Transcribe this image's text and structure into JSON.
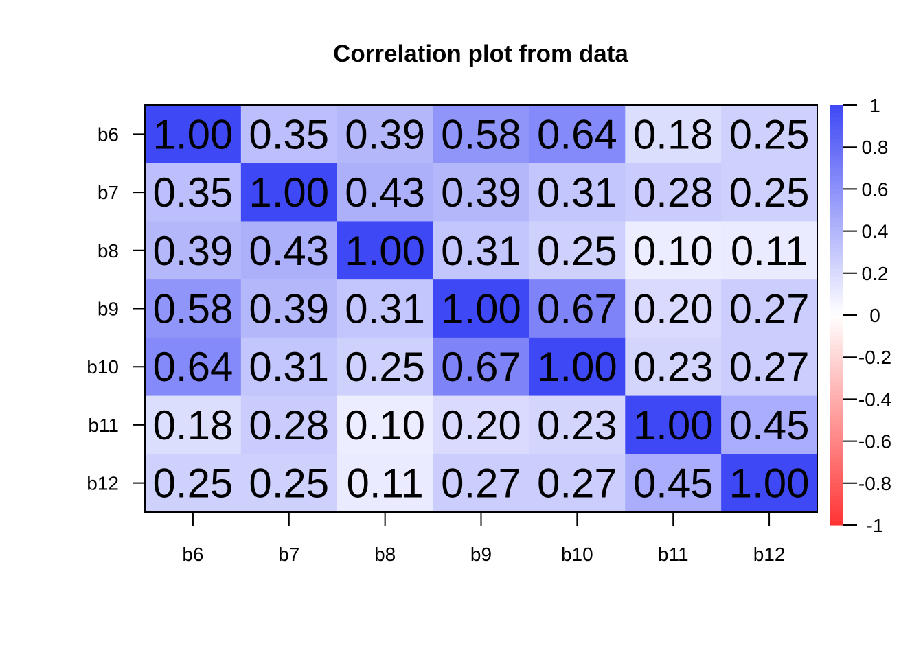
{
  "chart_data": {
    "type": "heatmap",
    "title": "Correlation plot from data",
    "xlabel": "",
    "ylabel": "",
    "row_labels": [
      "b6",
      "b7",
      "b8",
      "b9",
      "b10",
      "b11",
      "b12"
    ],
    "col_labels": [
      "b6",
      "b7",
      "b8",
      "b9",
      "b10",
      "b11",
      "b12"
    ],
    "values": [
      [
        1.0,
        0.35,
        0.39,
        0.58,
        0.64,
        0.18,
        0.25
      ],
      [
        0.35,
        1.0,
        0.43,
        0.39,
        0.31,
        0.28,
        0.25
      ],
      [
        0.39,
        0.43,
        1.0,
        0.31,
        0.25,
        0.1,
        0.11
      ],
      [
        0.58,
        0.39,
        0.31,
        1.0,
        0.67,
        0.2,
        0.27
      ],
      [
        0.64,
        0.31,
        0.25,
        0.67,
        1.0,
        0.23,
        0.27
      ],
      [
        0.18,
        0.28,
        0.1,
        0.2,
        0.23,
        1.0,
        0.45
      ],
      [
        0.25,
        0.25,
        0.11,
        0.27,
        0.27,
        0.45,
        1.0
      ]
    ],
    "value_labels": [
      [
        "1.00",
        "0.35",
        "0.39",
        "0.58",
        "0.64",
        "0.18",
        "0.25"
      ],
      [
        "0.35",
        "1.00",
        "0.43",
        "0.39",
        "0.31",
        "0.28",
        "0.25"
      ],
      [
        "0.39",
        "0.43",
        "1.00",
        "0.31",
        "0.25",
        "0.10",
        "0.11"
      ],
      [
        "0.58",
        "0.39",
        "0.31",
        "1.00",
        "0.67",
        "0.20",
        "0.27"
      ],
      [
        "0.64",
        "0.31",
        "0.25",
        "0.67",
        "1.00",
        "0.23",
        "0.27"
      ],
      [
        "0.18",
        "0.28",
        "0.10",
        "0.20",
        "0.23",
        "1.00",
        "0.45"
      ],
      [
        "0.25",
        "0.25",
        "0.11",
        "0.27",
        "0.27",
        "0.45",
        "1.00"
      ]
    ],
    "color_scale": {
      "range": [
        -1,
        1
      ],
      "low_color": "#ff3333",
      "mid_color": "#ffffff",
      "high_color": "#3f48f5"
    },
    "legend": {
      "placement": "right",
      "ticks": [
        1,
        0.8,
        0.6,
        0.4,
        0.2,
        0,
        -0.2,
        -0.4,
        -0.6,
        -0.8,
        -1
      ],
      "tick_labels": [
        "1",
        "0.8",
        "0.6",
        "0.4",
        "0.2",
        "0",
        "-0.2",
        "-0.4",
        "-0.6",
        "-0.8",
        "-1"
      ]
    }
  }
}
